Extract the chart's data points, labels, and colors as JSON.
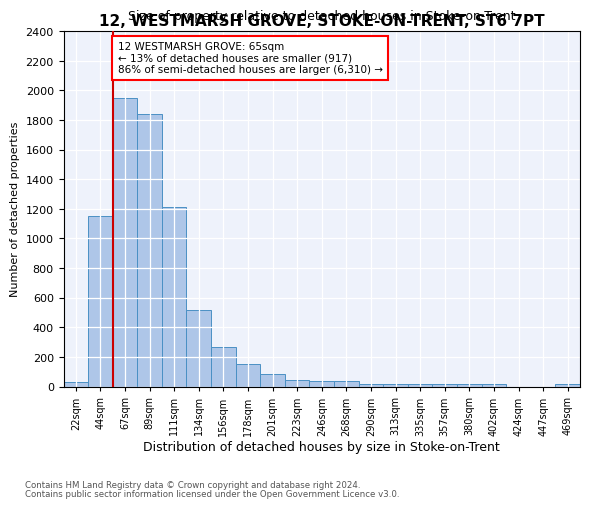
{
  "title": "12, WESTMARSH GROVE, STOKE-ON-TRENT, ST6 7PT",
  "subtitle": "Size of property relative to detached houses in Stoke-on-Trent",
  "xlabel": "Distribution of detached houses by size in Stoke-on-Trent",
  "ylabel": "Number of detached properties",
  "footnote1": "Contains HM Land Registry data © Crown copyright and database right 2024.",
  "footnote2": "Contains public sector information licensed under the Open Government Licence v3.0.",
  "annotation_line1": "12 WESTMARSH GROVE: 65sqm",
  "annotation_line2": "← 13% of detached houses are smaller (917)",
  "annotation_line3": "86% of semi-detached houses are larger (6,310) →",
  "bar_color": "#aec6e8",
  "bar_edge_color": "#4a90c4",
  "vline_color": "#cc0000",
  "ylim": [
    0,
    2400
  ],
  "yticks": [
    0,
    200,
    400,
    600,
    800,
    1000,
    1200,
    1400,
    1600,
    1800,
    2000,
    2200,
    2400
  ],
  "bin_labels": [
    "22sqm",
    "44sqm",
    "67sqm",
    "89sqm",
    "111sqm",
    "134sqm",
    "156sqm",
    "178sqm",
    "201sqm",
    "223sqm",
    "246sqm",
    "268sqm",
    "290sqm",
    "313sqm",
    "335sqm",
    "357sqm",
    "380sqm",
    "402sqm",
    "424sqm",
    "447sqm",
    "469sqm"
  ],
  "values": [
    30,
    1150,
    1950,
    1840,
    1210,
    515,
    265,
    155,
    85,
    45,
    40,
    35,
    20,
    20,
    20,
    20,
    20,
    20,
    0,
    0,
    20
  ]
}
